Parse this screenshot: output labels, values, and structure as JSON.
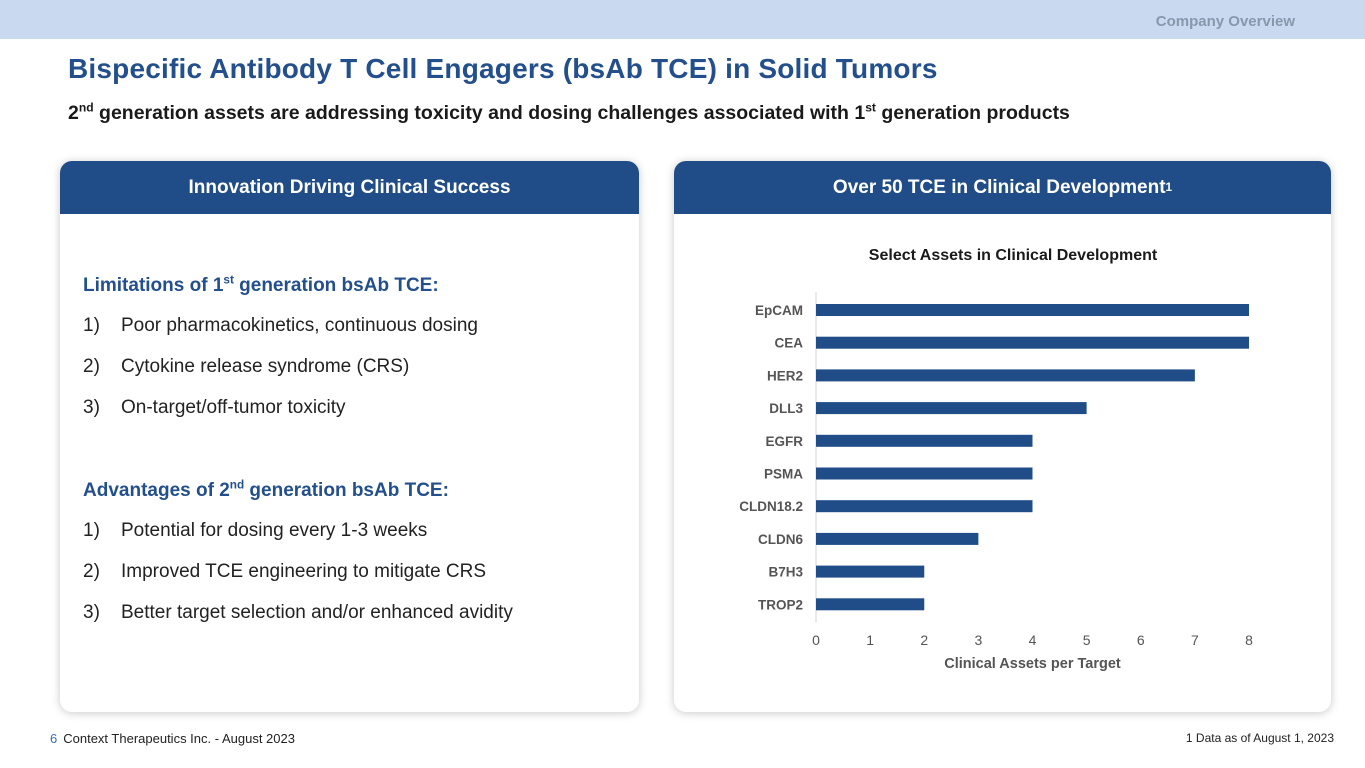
{
  "header": {
    "section_label": "Company Overview"
  },
  "title": "Bispecific Antibody T Cell Engagers (bsAb TCE) in Solid Tumors",
  "subtitle": {
    "p1": "2",
    "sup1": "nd",
    "p2": " generation assets are addressing toxicity and dosing challenges associated with 1",
    "sup2": "st",
    "p3": " generation products"
  },
  "left_card": {
    "header": "Innovation Driving Clinical Success",
    "limitations": {
      "heading_p1": "Limitations of 1",
      "heading_sup": "st",
      "heading_p2": " generation bsAb TCE:",
      "items": [
        {
          "num": "1)",
          "text": "Poor pharmacokinetics, continuous dosing"
        },
        {
          "num": "2)",
          "text": "Cytokine release syndrome (CRS)"
        },
        {
          "num": "3)",
          "text": "On-target/off-tumor toxicity"
        }
      ]
    },
    "advantages": {
      "heading_p1": "Advantages of 2",
      "heading_sup": "nd",
      "heading_p2": " generation bsAb TCE:",
      "items": [
        {
          "num": "1)",
          "text": "Potential for dosing every 1-3 weeks"
        },
        {
          "num": "2)",
          "text": "Improved TCE engineering to mitigate CRS"
        },
        {
          "num": "3)",
          "text": "Better target selection and/or enhanced avidity"
        }
      ]
    }
  },
  "right_card": {
    "header_text": "Over 50 TCE in Clinical Development",
    "header_sup": "1"
  },
  "chart_data": {
    "type": "bar",
    "orientation": "horizontal",
    "title": "Select Assets in Clinical Development",
    "categories": [
      "EpCAM",
      "CEA",
      "HER2",
      "DLL3",
      "EGFR",
      "PSMA",
      "CLDN18.2",
      "CLDN6",
      "B7H3",
      "TROP2"
    ],
    "values": [
      8,
      8,
      7,
      5,
      4,
      4,
      4,
      3,
      2,
      2
    ],
    "xlabel": "Clinical Assets per Target",
    "ylabel": "",
    "xlim": [
      0,
      8
    ],
    "xticks": [
      0,
      1,
      2,
      3,
      4,
      5,
      6,
      7,
      8
    ],
    "grid": false,
    "bar_color": "#204d87"
  },
  "footer": {
    "page_number": "6",
    "company": "Context Therapeutics Inc. - August 2023",
    "note": "1 Data as of August 1, 2023"
  }
}
